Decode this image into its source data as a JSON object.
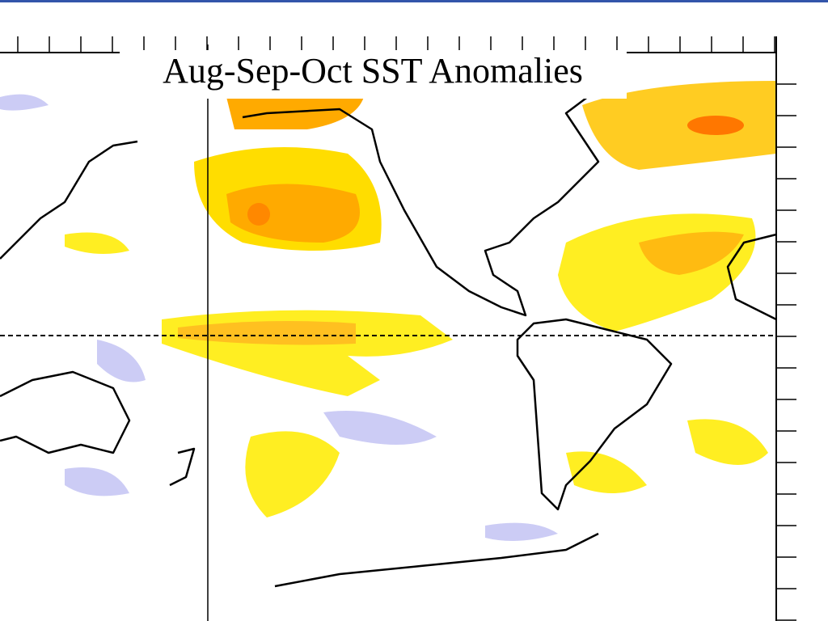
{
  "title": "Aug-Sep-Oct SST Anomalies"
}
